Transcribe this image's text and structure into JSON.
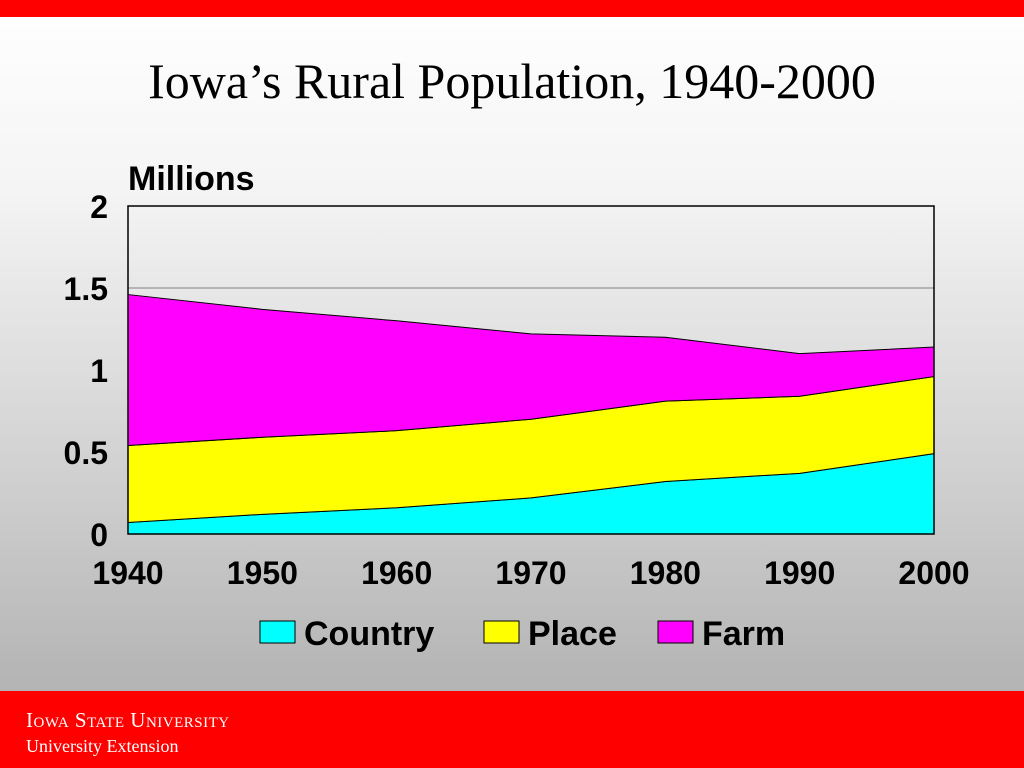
{
  "slide": {
    "title": "Iowa’s Rural Population, 1940-2000"
  },
  "footer": {
    "university": "Iowa State University",
    "division": "University Extension"
  },
  "chart_data": {
    "type": "area",
    "stacked": true,
    "title": "Iowa’s Rural Population, 1940-2000",
    "ylabel": "Millions",
    "xlabel": "",
    "x": [
      1940,
      1950,
      1960,
      1970,
      1980,
      1990,
      2000
    ],
    "ylim": [
      0,
      2
    ],
    "yticks": [
      0,
      0.5,
      1,
      1.5,
      2
    ],
    "ytick_labels": [
      "0",
      "0.5",
      "1",
      "1.5",
      "2"
    ],
    "gridlines": [
      1.5
    ],
    "legend_position": "bottom",
    "series": [
      {
        "name": "Country",
        "color": "#00ffff",
        "values": [
          0.07,
          0.12,
          0.16,
          0.22,
          0.32,
          0.37,
          0.49
        ]
      },
      {
        "name": "Place",
        "color": "#ffff00",
        "values": [
          0.47,
          0.47,
          0.47,
          0.48,
          0.49,
          0.47,
          0.47
        ]
      },
      {
        "name": "Farm",
        "color": "#ff00ff",
        "values": [
          0.92,
          0.78,
          0.67,
          0.52,
          0.39,
          0.26,
          0.18
        ]
      }
    ]
  }
}
